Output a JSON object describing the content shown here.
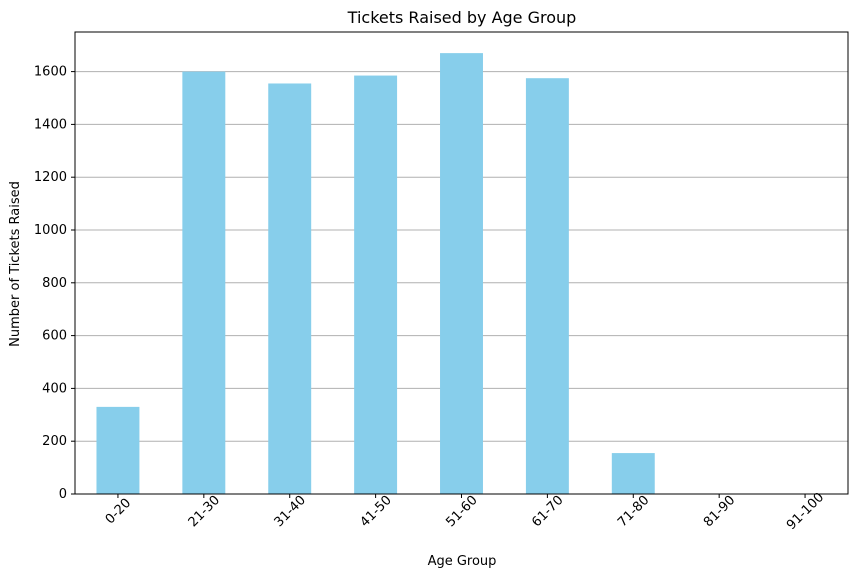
{
  "chart_data": {
    "type": "bar",
    "title": "Tickets Raised by Age Group",
    "xlabel": "Age Group",
    "ylabel": "Number of Tickets Raised",
    "categories": [
      "0-20",
      "21-30",
      "31-40",
      "41-50",
      "51-60",
      "61-70",
      "71-80",
      "81-90",
      "91-100"
    ],
    "values": [
      330,
      1600,
      1555,
      1585,
      1670,
      1575,
      155,
      0,
      0
    ],
    "ylim": [
      0,
      1750
    ],
    "yticks": [
      0,
      200,
      400,
      600,
      800,
      1000,
      1200,
      1400,
      1600
    ],
    "grid": "horizontal",
    "bar_color": "#87ceeb",
    "grid_color": "#b0b0b0"
  }
}
